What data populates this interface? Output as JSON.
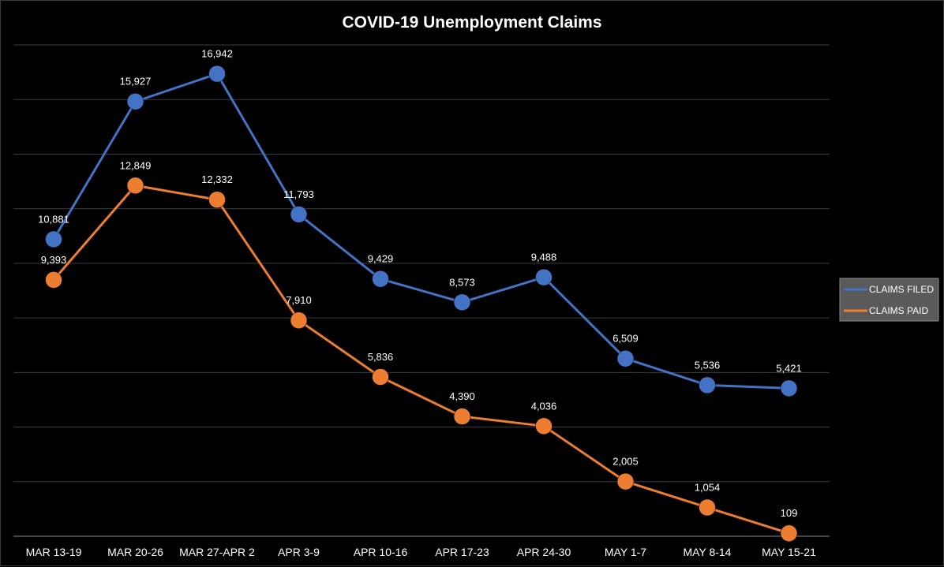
{
  "chart_data": {
    "type": "line",
    "title": "COVID-19 Unemployment Claims",
    "xlabel": "",
    "ylabel": "",
    "categories": [
      "MAR 13-19",
      "MAR 20-26",
      "MAR 27-APR 2",
      "APR 3-9",
      "APR 10-16",
      "APR 17-23",
      "APR 24-30",
      "MAY 1-7",
      "MAY 8-14",
      "MAY 15-21"
    ],
    "ylim": [
      0,
      18000
    ],
    "grid": true,
    "legend_position": "right",
    "series": [
      {
        "name": "CLAIMS FILED",
        "color": "#4472c4",
        "values": [
          10881,
          15927,
          16942,
          11793,
          9429,
          8573,
          9488,
          6509,
          5536,
          5421
        ],
        "labels": [
          "10,881",
          "15,927",
          "16,942",
          "11,793",
          "9,429",
          "8,573",
          "9,488",
          "6,509",
          "5,536",
          "5,421"
        ]
      },
      {
        "name": "CLAIMS PAID",
        "color": "#ed7d31",
        "values": [
          9393,
          12849,
          12332,
          7910,
          5836,
          4390,
          4036,
          2005,
          1054,
          109
        ],
        "labels": [
          "9,393",
          "12,849",
          "12,332",
          "7,910",
          "5,836",
          "4,390",
          "4,036",
          "2,005",
          "1,054",
          "109"
        ]
      }
    ]
  }
}
